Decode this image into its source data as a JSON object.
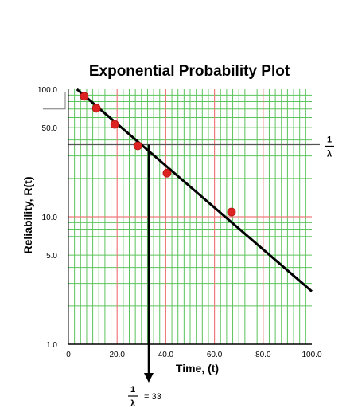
{
  "chart_data": {
    "type": "scatter",
    "title": "Exponential Probability Plot",
    "xlabel": "Time, (t)",
    "ylabel": "Reliability, R(t)",
    "y_scale": "log",
    "grid": true,
    "xlim": [
      0,
      100
    ],
    "ylim": [
      1,
      100
    ],
    "x_ticks": [
      "0",
      "20.0",
      "40.0",
      "60.0",
      "80.0",
      "100.0"
    ],
    "y_ticks": [
      "1.0",
      "5.0",
      "10.0",
      "50.0",
      "100.0"
    ],
    "points": [
      {
        "x": 6.5,
        "y": 88
      },
      {
        "x": 11.5,
        "y": 71
      },
      {
        "x": 19,
        "y": 53
      },
      {
        "x": 28.5,
        "y": 36
      },
      {
        "x": 40.5,
        "y": 22
      },
      {
        "x": 67,
        "y": 10.9
      }
    ],
    "fit_line": {
      "x": [
        3.5,
        100
      ],
      "y": [
        100,
        2.6
      ]
    },
    "annotations": {
      "right_label": {
        "numerator": "1",
        "denominator": "λ"
      },
      "bottom_label": {
        "numerator": "1",
        "denominator": "λ",
        "equals_text": "= 33"
      },
      "reference_level": 36.8,
      "reference_time": 33
    },
    "colors": {
      "minor_grid": "#5cc45c",
      "major_grid": "#ee7a7a",
      "points": "#dd2222",
      "line": "#000000"
    }
  }
}
